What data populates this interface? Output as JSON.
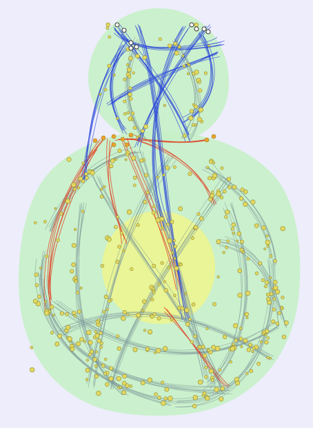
{
  "view": {
    "background": "#ededfb",
    "hulls": [
      {
        "name": "top-cluster-hull",
        "color": "#c6f0c8",
        "opacity": 0.9
      },
      {
        "name": "main-cluster-hull",
        "color": "#c6f0c8",
        "opacity": 0.9
      },
      {
        "name": "center-cluster-hull",
        "color": "#ecf590",
        "opacity": 0.9
      }
    ],
    "palette": {
      "edge_gray": "#7f9a9a",
      "edge_blue": "#2946d8",
      "edge_red": "#e0381b",
      "node_yellow": "#e3d860",
      "node_stroke": "#8c8a2e",
      "node_orange": "#f0a02a",
      "marker_white": "#ffffff",
      "marker_dark": "#333333"
    }
  }
}
